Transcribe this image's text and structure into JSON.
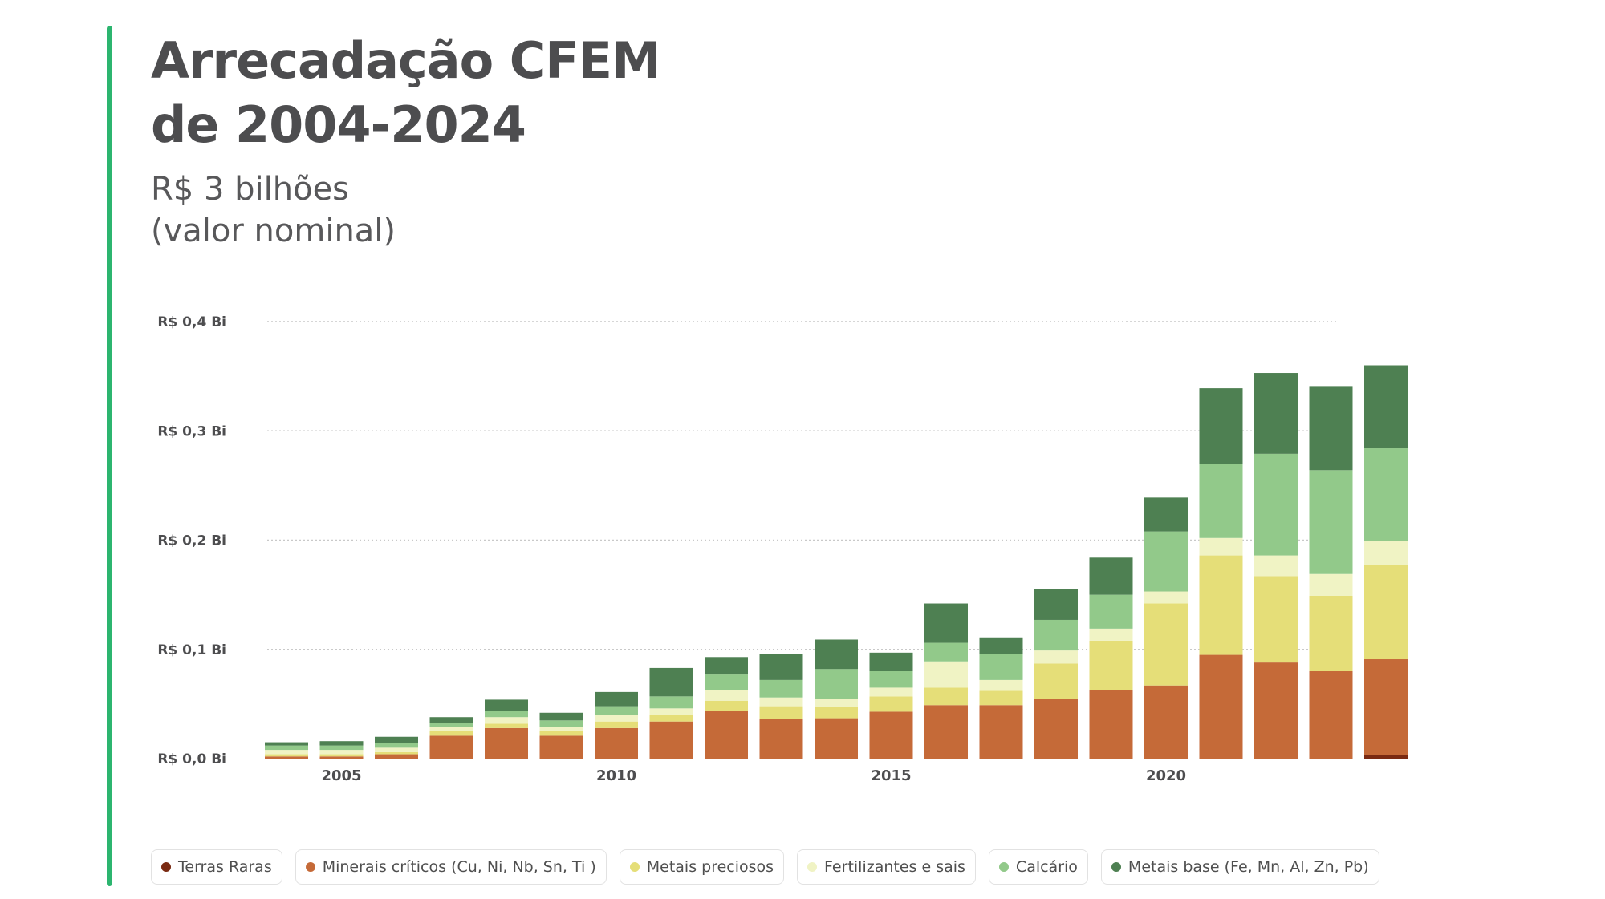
{
  "header": {
    "title_line1": "Arrecadação CFEM",
    "title_line2": "de 2004-2024",
    "subtitle_line1": "R$ 3 bilhões",
    "subtitle_line2": "(valor nominal)"
  },
  "colors": {
    "accent": "#2cb56f",
    "grid": "#c9c9c9",
    "text": "#4d4d4f"
  },
  "chart_data": {
    "type": "bar",
    "stacked": true,
    "title": "Arrecadação CFEM de 2004-2024",
    "xlabel": "",
    "ylabel": "",
    "ylim": [
      0,
      0.4
    ],
    "y_ticks": [
      {
        "value": 0.0,
        "label": "R$ 0,0 Bi"
      },
      {
        "value": 0.1,
        "label": "R$ 0,1 Bi"
      },
      {
        "value": 0.2,
        "label": "R$ 0,2 Bi"
      },
      {
        "value": 0.3,
        "label": "R$ 0,3 Bi"
      },
      {
        "value": 0.4,
        "label": "R$ 0,4 Bi"
      }
    ],
    "x_ticks": [
      {
        "value": 2005,
        "label": "2005"
      },
      {
        "value": 2010,
        "label": "2010"
      },
      {
        "value": 2015,
        "label": "2015"
      },
      {
        "value": 2020,
        "label": "2020"
      }
    ],
    "categories": [
      2004,
      2005,
      2006,
      2007,
      2008,
      2009,
      2010,
      2011,
      2012,
      2013,
      2014,
      2015,
      2016,
      2017,
      2018,
      2019,
      2020,
      2021,
      2022,
      2023,
      2024
    ],
    "series": [
      {
        "name": "Terras Raras",
        "color": "#7a2a12",
        "values": [
          0,
          0,
          0,
          0,
          0,
          0,
          0,
          0,
          0,
          0,
          0,
          0,
          0,
          0,
          0,
          0,
          0,
          0,
          0,
          0,
          0.003
        ]
      },
      {
        "name": "Minerais críticos (Cu, Ni, Nb, Sn, Ti )",
        "color": "#c56a38",
        "values": [
          0.002,
          0.002,
          0.004,
          0.021,
          0.028,
          0.021,
          0.028,
          0.034,
          0.044,
          0.036,
          0.037,
          0.043,
          0.049,
          0.049,
          0.055,
          0.063,
          0.067,
          0.095,
          0.088,
          0.08,
          0.088
        ]
      },
      {
        "name": "Metais preciosos",
        "color": "#e5de78",
        "values": [
          0.002,
          0.002,
          0.002,
          0.004,
          0.004,
          0.004,
          0.006,
          0.006,
          0.009,
          0.012,
          0.01,
          0.014,
          0.016,
          0.013,
          0.032,
          0.045,
          0.075,
          0.091,
          0.079,
          0.069,
          0.086
        ]
      },
      {
        "name": "Fertilizantes e sais",
        "color": "#f0f3c4",
        "values": [
          0.004,
          0.004,
          0.004,
          0.004,
          0.006,
          0.004,
          0.006,
          0.006,
          0.01,
          0.008,
          0.008,
          0.008,
          0.024,
          0.01,
          0.012,
          0.011,
          0.011,
          0.016,
          0.019,
          0.02,
          0.022
        ]
      },
      {
        "name": "Calcário",
        "color": "#92c98a",
        "values": [
          0.004,
          0.004,
          0.004,
          0.004,
          0.006,
          0.006,
          0.008,
          0.011,
          0.014,
          0.016,
          0.027,
          0.015,
          0.017,
          0.024,
          0.028,
          0.031,
          0.055,
          0.068,
          0.093,
          0.095,
          0.085
        ]
      },
      {
        "name": "Metais base (Fe, Mn, Al, Zn, Pb)",
        "color": "#4e8052",
        "values": [
          0.003,
          0.004,
          0.006,
          0.005,
          0.01,
          0.007,
          0.013,
          0.026,
          0.016,
          0.024,
          0.027,
          0.017,
          0.036,
          0.015,
          0.028,
          0.034,
          0.031,
          0.069,
          0.074,
          0.077,
          0.076
        ]
      }
    ],
    "legend_placement": "bottom"
  }
}
